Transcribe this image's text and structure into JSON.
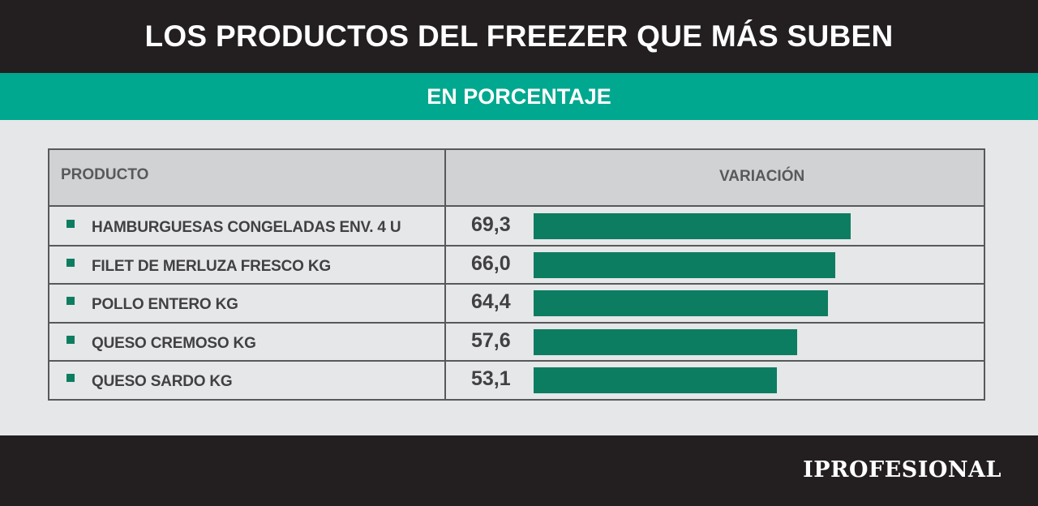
{
  "header": {
    "title": "LOS PRODUCTOS DEL FREEZER QUE MÁS SUBEN",
    "subtitle": "EN PORCENTAJE"
  },
  "colors": {
    "dark_band": "#231f20",
    "teal_band": "#00a88f",
    "bar": "#0d7d62",
    "background": "#e6e7e8",
    "header_row": "#d1d2d4"
  },
  "table": {
    "col_product": "PRODUCTO",
    "col_variation": "VARIACIÓN"
  },
  "chart_data": {
    "type": "bar",
    "orientation": "horizontal",
    "categories": [
      "HAMBURGUESAS CONGELADAS ENV. 4 U",
      "FILET DE MERLUZA FRESCO KG",
      "POLLO ENTERO KG",
      "QUESO CREMOSO KG",
      "QUESO SARDO KG"
    ],
    "values": [
      69.3,
      66.0,
      64.4,
      57.6,
      53.1
    ],
    "value_labels": [
      "69,3",
      "66,0",
      "64,4",
      "57,6",
      "53,1"
    ],
    "xlim": [
      0,
      69.3
    ]
  },
  "footer": {
    "brand": "IPROFESIONAL"
  }
}
